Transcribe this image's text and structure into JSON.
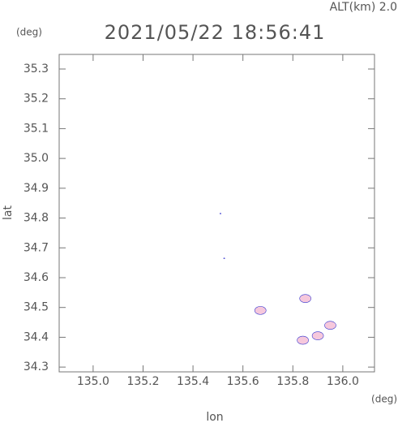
{
  "chart_data": {
    "type": "scatter",
    "title": "2021/05/22 18:56:41",
    "subtitle": "ALT(km) 2.0",
    "y_unit": "(deg)",
    "x_unit": "(deg)",
    "xlabel": "lon",
    "ylabel": "lat",
    "x": [
      135.51,
      135.525,
      135.67,
      135.85,
      135.95,
      135.9,
      135.84
    ],
    "series": [
      {
        "color": "#f6c8dc",
        "values": [
          34.815,
          34.665,
          34.49,
          34.53,
          34.44,
          34.405,
          34.39
        ]
      }
    ],
    "edge_color": "#3a3ad0",
    "xlim": [
      134.864,
      136.127
    ],
    "ylim": [
      34.284,
      35.349
    ],
    "xticks": [
      {
        "value": 135.0,
        "label": "135.0"
      },
      135.2,
      135.4,
      135.6,
      135.8,
      {
        "value": 136.0,
        "label": "136.0"
      }
    ],
    "yticks": [
      34.3,
      34.4,
      34.5,
      34.6,
      34.7,
      34.8,
      34.9,
      {
        "value": 35.0,
        "label": "35.0"
      },
      35.1,
      35.2,
      35.3
    ]
  }
}
